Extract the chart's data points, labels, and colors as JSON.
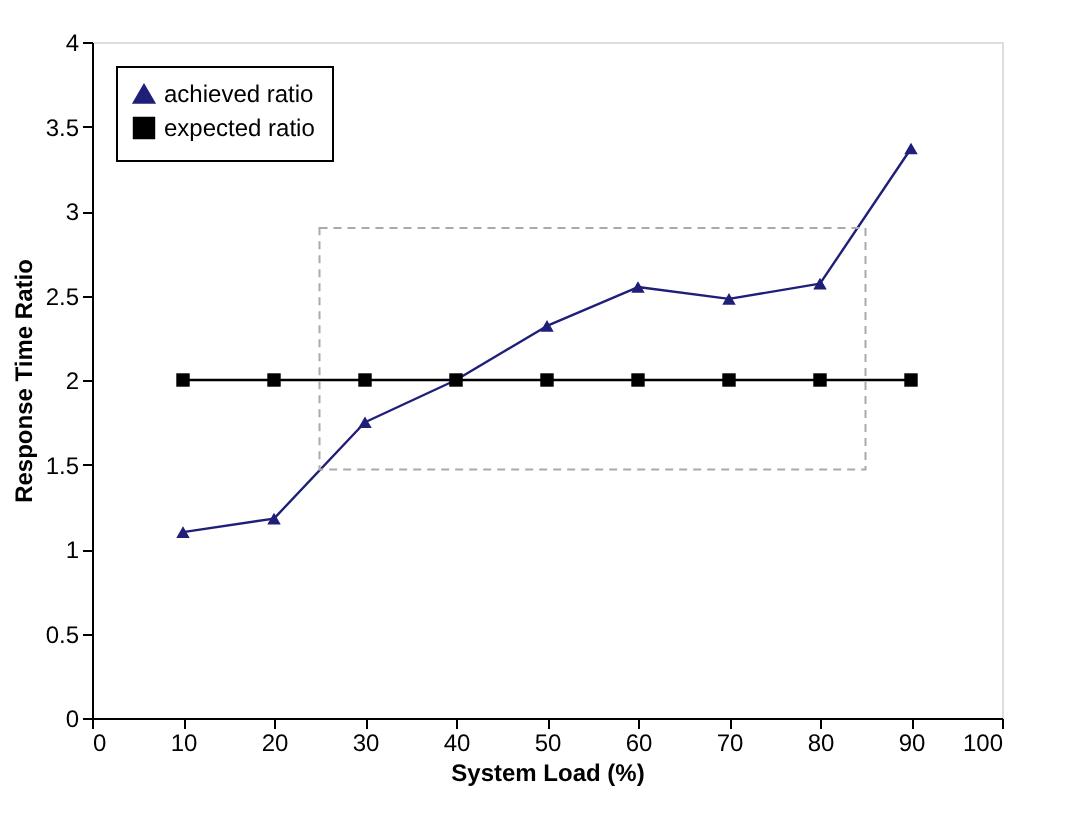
{
  "chart_data": {
    "type": "line",
    "xlabel": "System Load (%)",
    "ylabel": "Response Time Ratio",
    "x": [
      10,
      20,
      30,
      40,
      50,
      60,
      70,
      80,
      90
    ],
    "series": [
      {
        "name": "achieved ratio",
        "color": "#1f1f7a",
        "marker": "triangle",
        "values": [
          1.1,
          1.18,
          1.75,
          2.0,
          2.32,
          2.55,
          2.48,
          2.57,
          3.37
        ]
      },
      {
        "name": "expected ratio",
        "color": "#000000",
        "marker": "square",
        "values": [
          2,
          2,
          2,
          2,
          2,
          2,
          2,
          2,
          2
        ]
      }
    ],
    "xlim": [
      0,
      100
    ],
    "xticks": [
      0,
      10,
      20,
      30,
      40,
      50,
      60,
      70,
      80,
      90,
      100
    ],
    "ylim": [
      0,
      4
    ],
    "yticks": [
      0,
      0.5,
      1,
      1.5,
      2,
      2.5,
      3,
      3.5,
      4
    ],
    "grid": false,
    "legend": "top left",
    "line_style": "solid"
  }
}
